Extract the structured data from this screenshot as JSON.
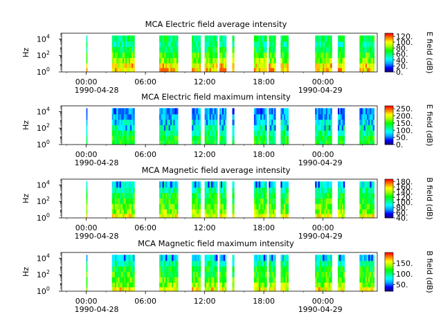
{
  "figure": {
    "x_date_start": "1990-04-28",
    "x_date_end": "1990-04-29",
    "x_ticks": [
      "00:00",
      "06:00",
      "12:00",
      "18:00",
      "00:00"
    ],
    "x_minor_hours_step": 2,
    "y_ticks_exponents": [
      0,
      2,
      4
    ]
  },
  "colormap": [
    "#1a0070",
    "#0000ff",
    "#00a0ff",
    "#00ffff",
    "#00ff80",
    "#00ff00",
    "#a0ff00",
    "#ffff00",
    "#ff8000",
    "#ff0000"
  ],
  "chart_data": [
    {
      "type": "heatmap",
      "title": "MCA  Electric field average intensity",
      "xlabel": "",
      "ylabel": "Hz",
      "y_scale": "log",
      "ylim": [
        1,
        50000
      ],
      "xlim_hours": [
        -2.5,
        29.5
      ],
      "colorbar": {
        "label": "E field (dB)",
        "ticks": [
          "0.",
          "20.",
          "40.",
          "60.",
          "80.",
          "100.",
          "120."
        ],
        "range": [
          0,
          130
        ]
      },
      "style": "avg",
      "data_intervals_hours": [
        [
          0.0,
          0.1
        ],
        [
          2.6,
          4.9
        ],
        [
          7.4,
          9.3
        ],
        [
          10.7,
          11.6
        ],
        [
          12.0,
          13.3
        ],
        [
          13.5,
          14.2
        ],
        [
          14.8,
          15.0
        ],
        [
          17.0,
          18.3
        ],
        [
          18.5,
          19.2
        ],
        [
          19.7,
          20.5
        ],
        [
          23.2,
          24.9
        ],
        [
          25.5,
          26.2
        ],
        [
          27.7,
          29.2
        ]
      ]
    },
    {
      "type": "heatmap",
      "title": "MCA  Electric field maximum intensity",
      "xlabel": "",
      "ylabel": "Hz",
      "y_scale": "log",
      "ylim": [
        1,
        50000
      ],
      "xlim_hours": [
        -2.5,
        29.5
      ],
      "colorbar": {
        "label": "E field (dB)",
        "ticks": [
          "0.",
          "50.",
          "100.",
          "150.",
          "200.",
          "250."
        ],
        "range": [
          0,
          270
        ]
      },
      "style": "max",
      "data_intervals_hours": [
        [
          0.0,
          0.1
        ],
        [
          2.6,
          4.9
        ],
        [
          7.4,
          9.3
        ],
        [
          10.7,
          11.6
        ],
        [
          12.0,
          13.3
        ],
        [
          13.5,
          14.2
        ],
        [
          14.8,
          15.0
        ],
        [
          17.0,
          18.3
        ],
        [
          18.5,
          19.2
        ],
        [
          19.7,
          20.5
        ],
        [
          23.2,
          24.9
        ],
        [
          25.5,
          26.2
        ],
        [
          27.7,
          29.2
        ]
      ]
    },
    {
      "type": "heatmap",
      "title": "MCA  Magnetic field average intensity",
      "xlabel": "",
      "ylabel": "Hz",
      "y_scale": "log",
      "ylim": [
        1,
        50000
      ],
      "xlim_hours": [
        -2.5,
        29.5
      ],
      "colorbar": {
        "label": "B field (dB)",
        "ticks": [
          "40.",
          "60.",
          "80.",
          "100.",
          "120.",
          "140.",
          "160.",
          "180."
        ],
        "range": [
          40,
          190
        ]
      },
      "style": "mag",
      "data_intervals_hours": [
        [
          0.0,
          0.1
        ],
        [
          2.6,
          4.9
        ],
        [
          7.4,
          9.3
        ],
        [
          10.7,
          11.6
        ],
        [
          12.0,
          13.3
        ],
        [
          13.5,
          14.2
        ],
        [
          14.8,
          15.0
        ],
        [
          17.0,
          18.3
        ],
        [
          18.5,
          19.2
        ],
        [
          19.7,
          20.5
        ],
        [
          23.2,
          24.9
        ],
        [
          25.5,
          26.2
        ],
        [
          27.7,
          29.2
        ]
      ]
    },
    {
      "type": "heatmap",
      "title": "MCA  Magnetic field maximum intensity",
      "xlabel": "",
      "ylabel": "Hz",
      "y_scale": "log",
      "ylim": [
        1,
        50000
      ],
      "xlim_hours": [
        -2.5,
        29.5
      ],
      "colorbar": {
        "label": "B field (dB)",
        "ticks": [
          "50.",
          "100.",
          "150."
        ],
        "range": [
          20,
          200
        ]
      },
      "style": "mag",
      "data_intervals_hours": [
        [
          0.0,
          0.1
        ],
        [
          2.6,
          4.9
        ],
        [
          7.4,
          9.3
        ],
        [
          10.7,
          11.6
        ],
        [
          12.0,
          13.3
        ],
        [
          13.5,
          14.2
        ],
        [
          14.8,
          15.0
        ],
        [
          17.0,
          18.3
        ],
        [
          18.5,
          19.2
        ],
        [
          19.7,
          20.5
        ],
        [
          23.2,
          24.9
        ],
        [
          25.5,
          26.2
        ],
        [
          27.7,
          29.2
        ]
      ]
    }
  ]
}
